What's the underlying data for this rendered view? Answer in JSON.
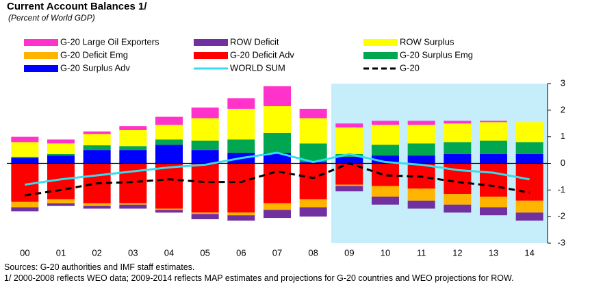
{
  "chart_data": {
    "type": "bar",
    "title": "Current Account Balances 1/",
    "subtitle": "(Percent of World GDP)",
    "notes": [
      "Sources: G-20 authorities and IMF staff estimates.",
      "1/ 2000-2008 reflects WEO data;  2009-2014 reflects MAP estimates and projections for G-20 countries and WEO projections for ROW."
    ],
    "categories": [
      "00",
      "01",
      "02",
      "03",
      "04",
      "05",
      "06",
      "07",
      "08",
      "09",
      "10",
      "11",
      "12",
      "13",
      "14"
    ],
    "ylim": [
      -3,
      3
    ],
    "yticks": [
      -3,
      -2,
      -1,
      0,
      1,
      2,
      3
    ],
    "shade_from_index": 9,
    "shade_color": "#c5eefa",
    "series": [
      {
        "name": "G-20 Surplus Adv",
        "type": "bar",
        "color": "#0000ff",
        "values": [
          0.2,
          0.3,
          0.5,
          0.5,
          0.7,
          0.5,
          0.4,
          0.4,
          0.05,
          0.25,
          0.3,
          0.3,
          0.35,
          0.35,
          0.35
        ]
      },
      {
        "name": "G-20 Surplus Emg",
        "type": "bar",
        "color": "#00a650",
        "values": [
          0.05,
          0.05,
          0.18,
          0.15,
          0.2,
          0.35,
          0.5,
          0.75,
          0.7,
          0.1,
          0.4,
          0.45,
          0.45,
          0.5,
          0.45
        ]
      },
      {
        "name": "ROW Surplus",
        "type": "bar",
        "color": "#ffff00",
        "values": [
          0.55,
          0.4,
          0.42,
          0.6,
          0.55,
          0.85,
          1.15,
          1.0,
          0.95,
          1.0,
          0.75,
          0.7,
          0.7,
          0.7,
          0.75
        ]
      },
      {
        "name": "G-20 Large Oil Exporters",
        "type": "bar",
        "color": "#ff33cc",
        "values": [
          0.2,
          0.15,
          0.1,
          0.15,
          0.3,
          0.4,
          0.4,
          0.75,
          0.35,
          0.15,
          0.15,
          0.15,
          0.1,
          0.05,
          0
        ]
      },
      {
        "name": "G-20 Deficit Adv",
        "type": "bar",
        "color": "#ff0000",
        "values": [
          -1.45,
          -1.35,
          -1.5,
          -1.5,
          -1.7,
          -1.85,
          -1.85,
          -1.5,
          -1.35,
          -0.8,
          -0.85,
          -0.95,
          -1.15,
          -1.25,
          -1.4
        ]
      },
      {
        "name": "G-20 Deficit Emg",
        "type": "bar",
        "color": "#ffb400",
        "values": [
          -0.2,
          -0.15,
          -0.1,
          -0.05,
          -0.05,
          -0.05,
          -0.1,
          -0.25,
          -0.3,
          -0.05,
          -0.4,
          -0.45,
          -0.4,
          -0.4,
          -0.45
        ]
      },
      {
        "name": "ROW Deficit",
        "type": "bar",
        "color": "#7030a0",
        "values": [
          -0.15,
          -0.1,
          -0.1,
          -0.15,
          -0.1,
          -0.2,
          -0.2,
          -0.3,
          -0.35,
          -0.2,
          -0.3,
          -0.3,
          -0.3,
          -0.3,
          -0.3
        ]
      },
      {
        "name": "WORLD SUM",
        "type": "line",
        "color": "#33ddee",
        "values": [
          -0.8,
          -0.6,
          -0.45,
          -0.3,
          -0.15,
          -0.05,
          0.2,
          0.4,
          0.05,
          0.35,
          0.05,
          -0.05,
          -0.25,
          -0.35,
          -0.6
        ]
      },
      {
        "name": "G-20",
        "type": "line",
        "dash": true,
        "color": "#000000",
        "values": [
          -1.2,
          -1.0,
          -0.75,
          -0.7,
          -0.6,
          -0.7,
          -0.7,
          -0.3,
          -0.55,
          0.0,
          -0.45,
          -0.5,
          -0.7,
          -0.85,
          -1.1
        ]
      }
    ]
  }
}
